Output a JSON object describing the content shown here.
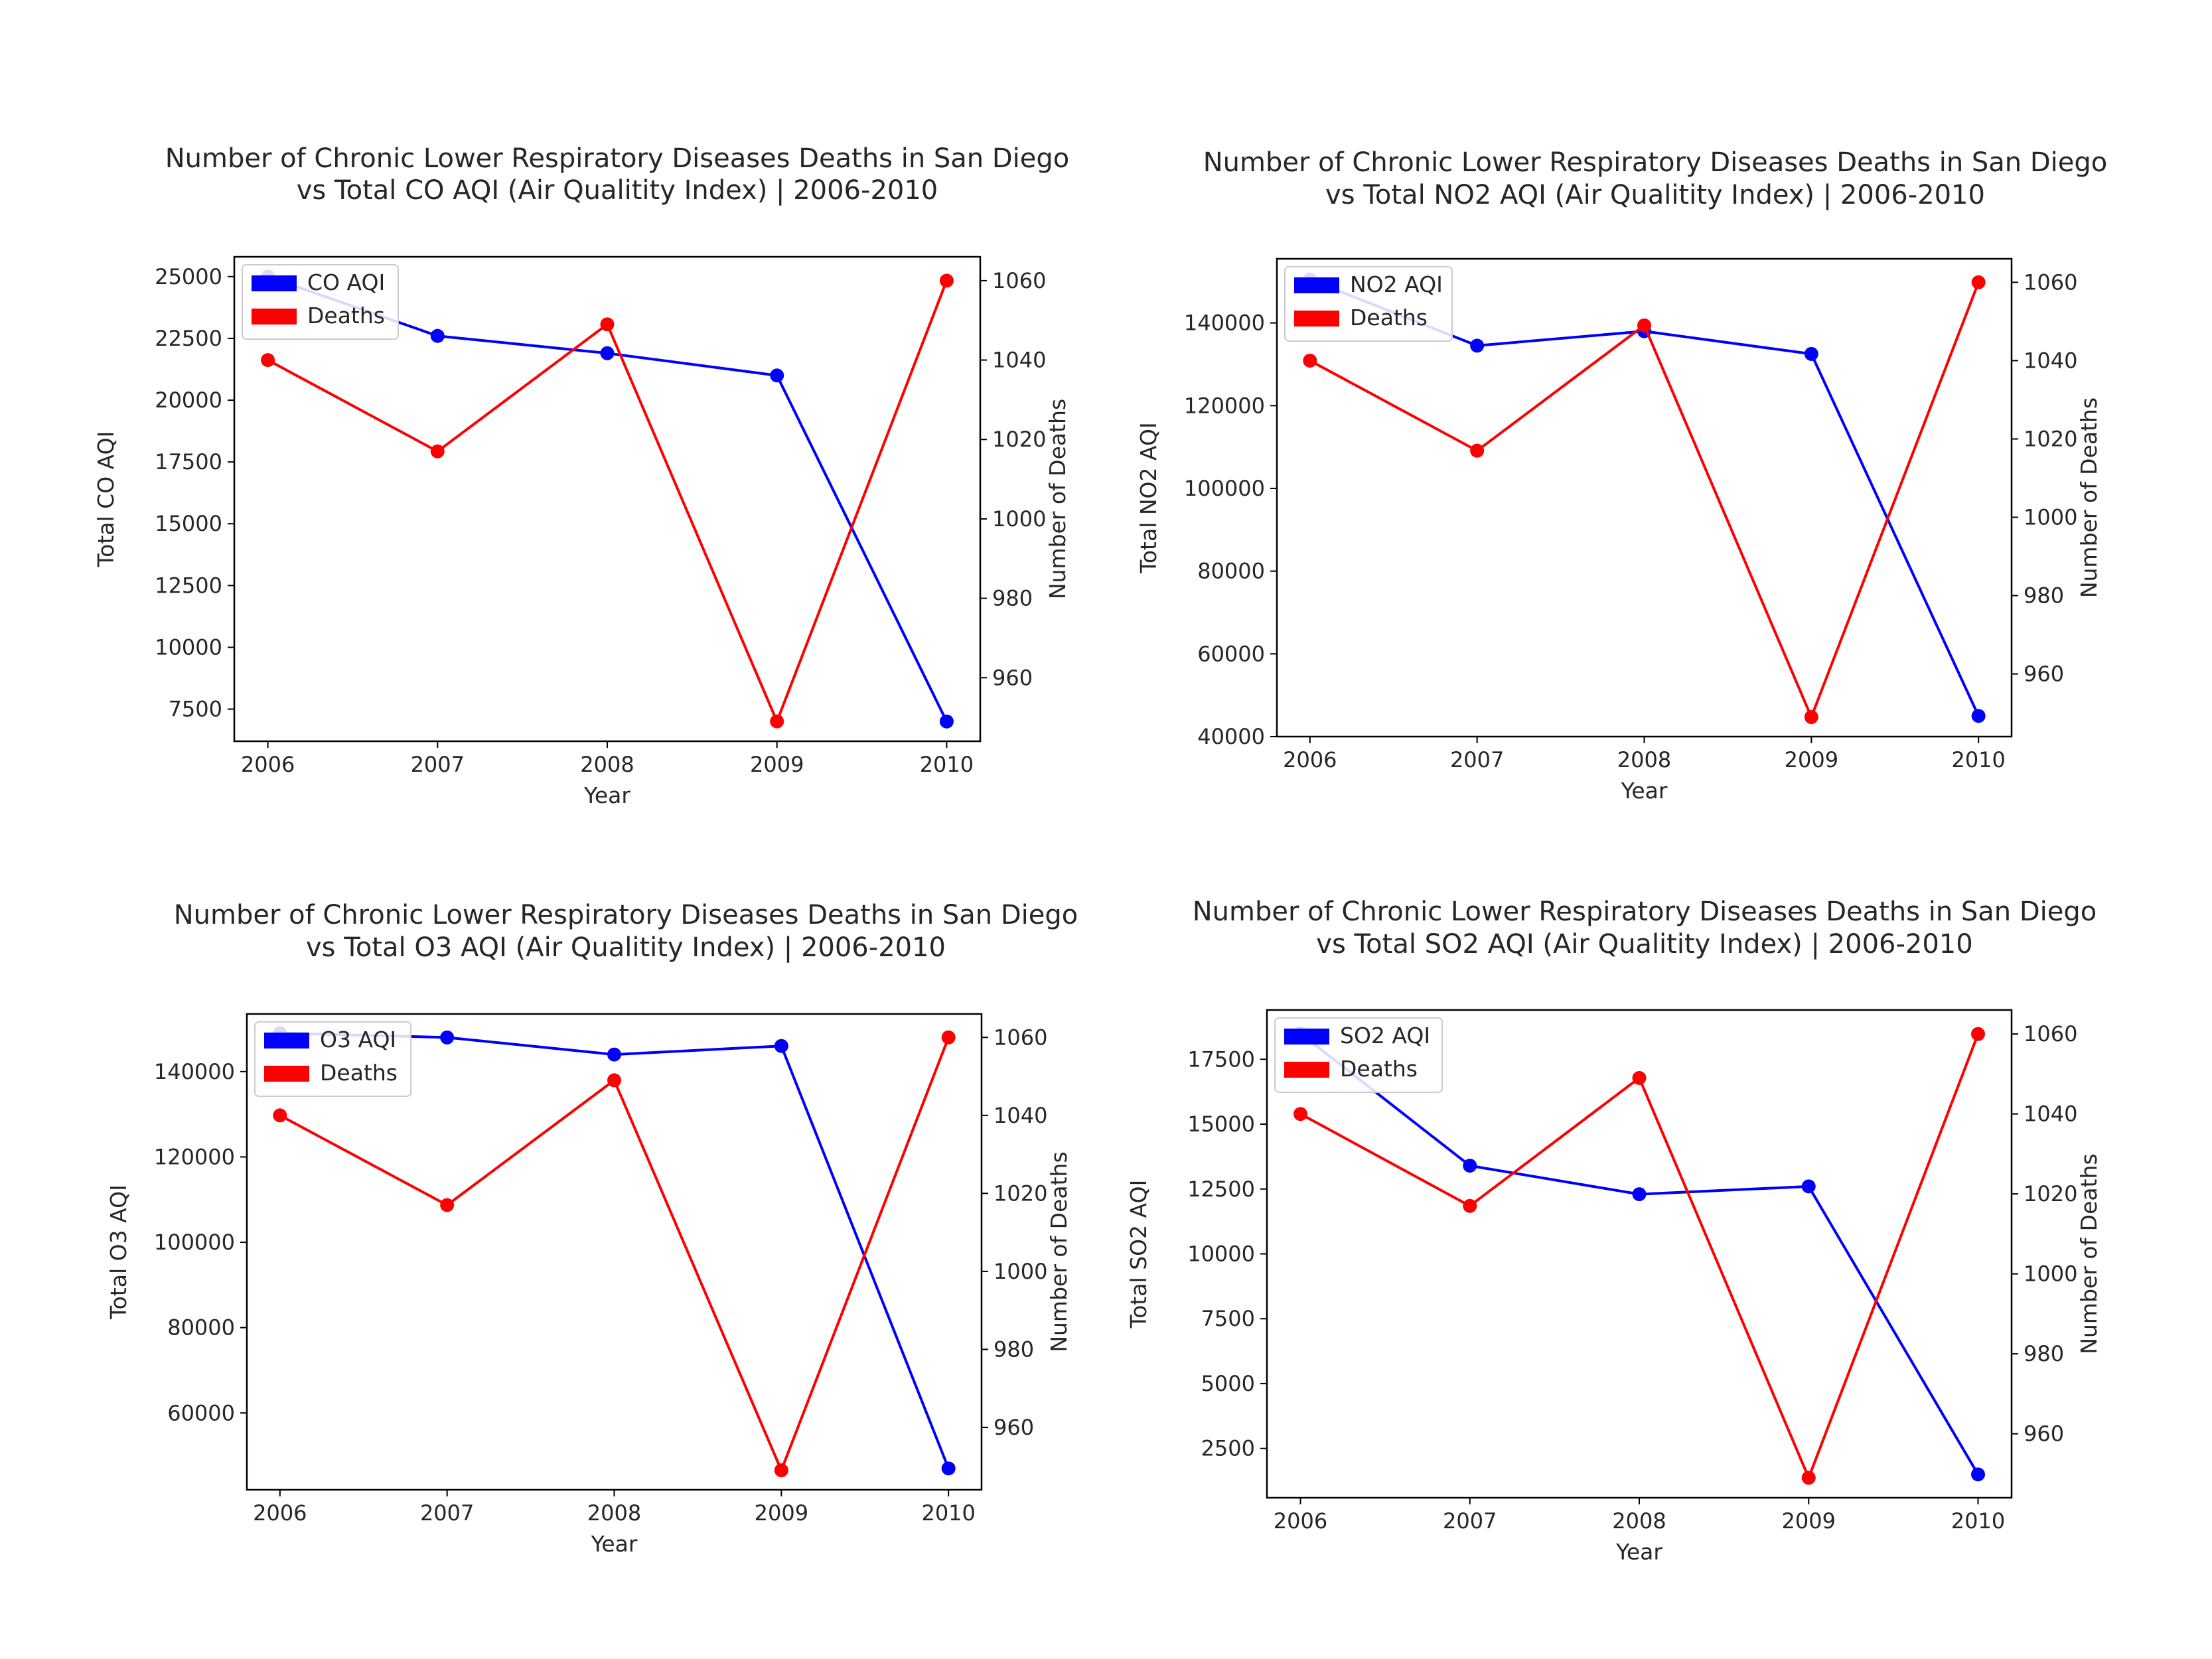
{
  "chart_data": [
    {
      "type": "line",
      "title_lines": [
        "Number of Chronic Lower Respiratory Diseases Deaths in San Diego",
        "vs Total CO AQI (Air Qualitity Index) | 2006-2010"
      ],
      "xlabel": "Year",
      "ylabel": "Total CO AQI",
      "ylabel_right": "Number of Deaths",
      "categories": [
        "2006",
        "2007",
        "2008",
        "2009",
        "2010"
      ],
      "x_ticks": [
        "2006",
        "2007",
        "2008",
        "2009",
        "2010"
      ],
      "ylim": [
        6200,
        25800
      ],
      "y_ticks": [
        "7500",
        "10000",
        "12500",
        "15000",
        "17500",
        "20000",
        "22500",
        "25000"
      ],
      "ylim_right": [
        944,
        1066
      ],
      "y_ticks_right": [
        "960",
        "980",
        "1000",
        "1020",
        "1040",
        "1060"
      ],
      "legend_position": "upper left",
      "series": [
        {
          "name": "CO AQI",
          "axis": "left",
          "color": "#0000ff",
          "values": [
            25000,
            22600,
            21900,
            21000,
            7000
          ]
        },
        {
          "name": "Deaths",
          "axis": "right",
          "color": "#ff0000",
          "values": [
            1040,
            1017,
            1049,
            949,
            1060
          ]
        }
      ]
    },
    {
      "type": "line",
      "title_lines": [
        "Number of Chronic Lower Respiratory Diseases Deaths in San Diego",
        "vs Total NO2 AQI (Air Qualitity Index) | 2006-2010"
      ],
      "xlabel": "Year",
      "ylabel": "Total NO2 AQI",
      "ylabel_right": "Number of Deaths",
      "categories": [
        "2006",
        "2007",
        "2008",
        "2009",
        "2010"
      ],
      "x_ticks": [
        "2006",
        "2007",
        "2008",
        "2009",
        "2010"
      ],
      "ylim": [
        40000,
        155500
      ],
      "y_ticks": [
        "40000",
        "60000",
        "80000",
        "100000",
        "120000",
        "140000"
      ],
      "ylim_right": [
        944,
        1066
      ],
      "y_ticks_right": [
        "960",
        "980",
        "1000",
        "1020",
        "1040",
        "1060"
      ],
      "legend_position": "upper left",
      "series": [
        {
          "name": "NO2 AQI",
          "axis": "left",
          "color": "#0000ff",
          "values": [
            150500,
            134500,
            138000,
            132500,
            45000
          ]
        },
        {
          "name": "Deaths",
          "axis": "right",
          "color": "#ff0000",
          "values": [
            1040,
            1017,
            1049,
            949,
            1060
          ]
        }
      ]
    },
    {
      "type": "line",
      "title_lines": [
        "Number of Chronic Lower Respiratory Diseases Deaths in San Diego",
        "vs Total O3 AQI (Air Qualitity Index) | 2006-2010"
      ],
      "xlabel": "Year",
      "ylabel": "Total O3 AQI",
      "ylabel_right": "Number of Deaths",
      "categories": [
        "2006",
        "2007",
        "2008",
        "2009",
        "2010"
      ],
      "x_ticks": [
        "2006",
        "2007",
        "2008",
        "2009",
        "2010"
      ],
      "ylim": [
        42000,
        153500
      ],
      "y_ticks": [
        "60000",
        "80000",
        "100000",
        "120000",
        "140000"
      ],
      "ylim_right": [
        944,
        1066
      ],
      "y_ticks_right": [
        "960",
        "980",
        "1000",
        "1020",
        "1040",
        "1060"
      ],
      "legend_position": "upper left",
      "series": [
        {
          "name": "O3 AQI",
          "axis": "left",
          "color": "#0000ff",
          "values": [
            149000,
            148000,
            144000,
            146000,
            47000
          ]
        },
        {
          "name": "Deaths",
          "axis": "right",
          "color": "#ff0000",
          "values": [
            1040,
            1017,
            1049,
            949,
            1060
          ]
        }
      ]
    },
    {
      "type": "line",
      "title_lines": [
        "Number of Chronic Lower Respiratory Diseases Deaths in San Diego",
        "vs Total SO2 AQI (Air Qualitity Index) | 2006-2010"
      ],
      "xlabel": "Year",
      "ylabel": "Total SO2 AQI",
      "ylabel_right": "Number of Deaths",
      "categories": [
        "2006",
        "2007",
        "2008",
        "2009",
        "2010"
      ],
      "x_ticks": [
        "2006",
        "2007",
        "2008",
        "2009",
        "2010"
      ],
      "ylim": [
        600,
        19400
      ],
      "y_ticks": [
        "2500",
        "5000",
        "7500",
        "10000",
        "12500",
        "15000",
        "17500"
      ],
      "ylim_right": [
        944,
        1066
      ],
      "y_ticks_right": [
        "960",
        "980",
        "1000",
        "1020",
        "1040",
        "1060"
      ],
      "legend_position": "upper left",
      "series": [
        {
          "name": "SO2 AQI",
          "axis": "left",
          "color": "#0000ff",
          "values": [
            18500,
            13400,
            12300,
            12600,
            1500
          ]
        },
        {
          "name": "Deaths",
          "axis": "right",
          "color": "#ff0000",
          "values": [
            1040,
            1017,
            1049,
            949,
            1060
          ]
        }
      ]
    }
  ]
}
